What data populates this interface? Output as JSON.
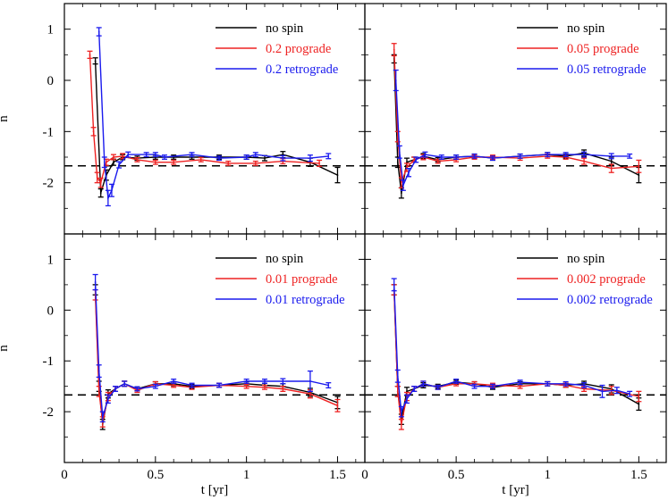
{
  "figure": {
    "ylabel": "n",
    "xlabel": "t [yr]"
  },
  "colors": {
    "no_spin": "#000000",
    "prograde": "#ee2222",
    "retrograde": "#1a1aee",
    "reference": "#000000"
  },
  "chart_data": [
    {
      "type": "line",
      "panel": "top-left",
      "xlim": [
        0,
        1.65
      ],
      "ylim": [
        -3,
        1.5
      ],
      "xticks": [
        0,
        0.5,
        1,
        1.5
      ],
      "xtick_labels": [
        "0",
        "0.5",
        "1",
        "1.5"
      ],
      "yticks": [
        1,
        0,
        -1,
        -2
      ],
      "ytick_labels": [
        "1",
        "0",
        "-1",
        "-2"
      ],
      "xlabel": "t [yr]",
      "ylabel": "n",
      "reference_line": -1.67,
      "legend_position": "top-right",
      "series": [
        {
          "name": "no spin",
          "color_key": "no_spin",
          "x": [
            0.17,
            0.2,
            0.23,
            0.27,
            0.32,
            0.4,
            0.5,
            0.6,
            0.7,
            0.85,
            1.0,
            1.1,
            1.2,
            1.35,
            1.5
          ],
          "y": [
            0.38,
            -2.2,
            -1.85,
            -1.6,
            -1.5,
            -1.52,
            -1.5,
            -1.5,
            -1.5,
            -1.5,
            -1.5,
            -1.52,
            -1.45,
            -1.6,
            -1.85
          ],
          "err": [
            0.06,
            0.08,
            0.1,
            0.06,
            0.05,
            0.04,
            0.04,
            0.04,
            0.04,
            0.04,
            0.04,
            0.05,
            0.06,
            0.08,
            0.15
          ]
        },
        {
          "name": "0.2 prograde",
          "color_key": "prograde",
          "x": [
            0.14,
            0.16,
            0.18,
            0.2,
            0.23,
            0.27,
            0.32,
            0.4,
            0.5,
            0.6,
            0.75,
            0.9,
            1.05,
            1.2,
            1.4
          ],
          "y": [
            0.5,
            -1.0,
            -1.9,
            -2.0,
            -1.6,
            -1.5,
            -1.48,
            -1.55,
            -1.6,
            -1.6,
            -1.55,
            -1.62,
            -1.62,
            -1.58,
            -1.62
          ],
          "err": [
            0.07,
            0.08,
            0.1,
            0.09,
            0.06,
            0.05,
            0.05,
            0.04,
            0.04,
            0.04,
            0.04,
            0.04,
            0.04,
            0.05,
            0.06
          ]
        },
        {
          "name": "0.2 retrograde",
          "color_key": "retrograde",
          "x": [
            0.19,
            0.22,
            0.24,
            0.26,
            0.3,
            0.35,
            0.45,
            0.5,
            0.55,
            0.7,
            0.85,
            1.0,
            1.05,
            1.2,
            1.35,
            1.45
          ],
          "y": [
            0.95,
            -1.6,
            -2.3,
            -2.15,
            -1.65,
            -1.45,
            -1.45,
            -1.45,
            -1.5,
            -1.45,
            -1.52,
            -1.5,
            -1.45,
            -1.52,
            -1.52,
            -1.48
          ],
          "err": [
            0.08,
            0.1,
            0.15,
            0.12,
            0.06,
            0.05,
            0.04,
            0.04,
            0.04,
            0.04,
            0.04,
            0.04,
            0.04,
            0.05,
            0.06,
            0.05
          ]
        }
      ],
      "legend": [
        "no spin",
        "0.2 prograde",
        "0.2 retrograde"
      ]
    },
    {
      "type": "line",
      "panel": "top-right",
      "xlim": [
        0,
        1.65
      ],
      "ylim": [
        -3,
        1.5
      ],
      "xticks": [
        0,
        0.5,
        1,
        1.5
      ],
      "xtick_labels": [
        "0",
        "0.5",
        "1",
        "1.5"
      ],
      "yticks": [
        1,
        0,
        -1,
        -2
      ],
      "ytick_labels": [
        "1",
        "0",
        "-1",
        "-2"
      ],
      "xlabel": "t [yr]",
      "ylabel": "",
      "reference_line": -1.67,
      "legend_position": "top-right",
      "series": [
        {
          "name": "no spin",
          "color_key": "no_spin",
          "x": [
            0.16,
            0.18,
            0.2,
            0.23,
            0.27,
            0.32,
            0.4,
            0.5,
            0.6,
            0.7,
            0.85,
            1.0,
            1.1,
            1.2,
            1.35,
            1.5
          ],
          "y": [
            0.42,
            -1.6,
            -2.2,
            -1.6,
            -1.55,
            -1.48,
            -1.55,
            -1.5,
            -1.48,
            -1.52,
            -1.48,
            -1.45,
            -1.48,
            -1.42,
            -1.58,
            -1.85
          ],
          "err": [
            0.08,
            0.1,
            0.1,
            0.08,
            0.05,
            0.05,
            0.04,
            0.04,
            0.04,
            0.04,
            0.04,
            0.04,
            0.04,
            0.06,
            0.08,
            0.15
          ]
        },
        {
          "name": "0.05 prograde",
          "color_key": "prograde",
          "x": [
            0.16,
            0.18,
            0.2,
            0.23,
            0.27,
            0.32,
            0.4,
            0.5,
            0.6,
            0.7,
            0.85,
            1.0,
            1.1,
            1.2,
            1.35,
            1.5
          ],
          "y": [
            0.6,
            -1.1,
            -2.0,
            -1.7,
            -1.55,
            -1.5,
            -1.58,
            -1.55,
            -1.5,
            -1.5,
            -1.52,
            -1.48,
            -1.5,
            -1.58,
            -1.72,
            -1.68
          ],
          "err": [
            0.12,
            0.1,
            0.1,
            0.08,
            0.05,
            0.05,
            0.04,
            0.04,
            0.04,
            0.04,
            0.04,
            0.04,
            0.04,
            0.06,
            0.08,
            0.12
          ]
        },
        {
          "name": "0.05 retrograde",
          "color_key": "retrograde",
          "x": [
            0.17,
            0.19,
            0.21,
            0.24,
            0.28,
            0.33,
            0.42,
            0.5,
            0.6,
            0.7,
            0.85,
            1.0,
            1.1,
            1.2,
            1.35,
            1.45
          ],
          "y": [
            0.0,
            -1.4,
            -2.05,
            -1.8,
            -1.55,
            -1.45,
            -1.5,
            -1.5,
            -1.48,
            -1.52,
            -1.48,
            -1.45,
            -1.45,
            -1.45,
            -1.48,
            -1.48
          ],
          "err": [
            0.2,
            0.12,
            0.1,
            0.08,
            0.05,
            0.05,
            0.04,
            0.04,
            0.04,
            0.04,
            0.04,
            0.04,
            0.04,
            0.05,
            0.05,
            0.04
          ]
        }
      ],
      "legend": [
        "no spin",
        "0.05 prograde",
        "0.05 retrograde"
      ]
    },
    {
      "type": "line",
      "panel": "bottom-left",
      "xlim": [
        0,
        1.65
      ],
      "ylim": [
        -3,
        1.5
      ],
      "xticks": [
        0,
        0.5,
        1,
        1.5
      ],
      "xtick_labels": [
        "0",
        "0.5",
        "1",
        "1.5"
      ],
      "yticks": [
        1,
        0,
        -1,
        -2
      ],
      "ytick_labels": [
        "1",
        "0",
        "-1",
        "-2"
      ],
      "xlabel": "t [yr]",
      "ylabel": "n",
      "reference_line": -1.67,
      "legend_position": "top-right",
      "series": [
        {
          "name": "no spin",
          "color_key": "no_spin",
          "x": [
            0.17,
            0.19,
            0.21,
            0.24,
            0.28,
            0.33,
            0.4,
            0.5,
            0.6,
            0.7,
            0.85,
            1.0,
            1.1,
            1.2,
            1.35,
            1.5
          ],
          "y": [
            0.4,
            -1.5,
            -2.25,
            -1.65,
            -1.55,
            -1.45,
            -1.55,
            -1.45,
            -1.45,
            -1.5,
            -1.48,
            -1.45,
            -1.48,
            -1.5,
            -1.62,
            -1.82
          ],
          "err": [
            0.1,
            0.1,
            0.1,
            0.08,
            0.05,
            0.05,
            0.04,
            0.04,
            0.04,
            0.04,
            0.04,
            0.04,
            0.04,
            0.05,
            0.08,
            0.12
          ]
        },
        {
          "name": "0.01 prograde",
          "color_key": "prograde",
          "x": [
            0.17,
            0.19,
            0.21,
            0.24,
            0.28,
            0.33,
            0.4,
            0.5,
            0.6,
            0.7,
            0.85,
            1.0,
            1.1,
            1.2,
            1.35,
            1.5
          ],
          "y": [
            0.3,
            -1.6,
            -2.2,
            -1.7,
            -1.55,
            -1.45,
            -1.58,
            -1.45,
            -1.48,
            -1.52,
            -1.48,
            -1.5,
            -1.52,
            -1.55,
            -1.65,
            -1.88
          ],
          "err": [
            0.1,
            0.1,
            0.1,
            0.08,
            0.05,
            0.05,
            0.04,
            0.04,
            0.04,
            0.04,
            0.04,
            0.04,
            0.04,
            0.05,
            0.08,
            0.12
          ]
        },
        {
          "name": "0.01 retrograde",
          "color_key": "retrograde",
          "x": [
            0.17,
            0.19,
            0.21,
            0.24,
            0.28,
            0.33,
            0.4,
            0.5,
            0.6,
            0.7,
            0.85,
            1.0,
            1.1,
            1.2,
            1.35,
            1.45
          ],
          "y": [
            0.55,
            -1.2,
            -2.1,
            -1.75,
            -1.55,
            -1.45,
            -1.55,
            -1.5,
            -1.4,
            -1.48,
            -1.48,
            -1.4,
            -1.4,
            -1.4,
            -1.4,
            -1.48
          ],
          "err": [
            0.15,
            0.12,
            0.1,
            0.08,
            0.05,
            0.05,
            0.04,
            0.04,
            0.04,
            0.04,
            0.04,
            0.04,
            0.04,
            0.05,
            0.2,
            0.05
          ]
        }
      ],
      "legend": [
        "no spin",
        "0.01 prograde",
        "0.01 retrograde"
      ]
    },
    {
      "type": "line",
      "panel": "bottom-right",
      "xlim": [
        0,
        1.65
      ],
      "ylim": [
        -3,
        1.5
      ],
      "xticks": [
        0,
        0.5,
        1,
        1.5
      ],
      "xtick_labels": [
        "0",
        "0.5",
        "1",
        "1.5"
      ],
      "yticks": [
        1,
        0,
        -1,
        -2
      ],
      "ytick_labels": [
        "1",
        "0",
        "-1",
        "-2"
      ],
      "xlabel": "t [yr]",
      "ylabel": "",
      "reference_line": -1.67,
      "legend_position": "top-right",
      "series": [
        {
          "name": "no spin",
          "color_key": "no_spin",
          "x": [
            0.16,
            0.18,
            0.2,
            0.23,
            0.27,
            0.32,
            0.4,
            0.5,
            0.6,
            0.7,
            0.85,
            1.0,
            1.1,
            1.2,
            1.35,
            1.5
          ],
          "y": [
            0.4,
            -1.6,
            -2.15,
            -1.6,
            -1.55,
            -1.48,
            -1.5,
            -1.42,
            -1.45,
            -1.52,
            -1.45,
            -1.45,
            -1.48,
            -1.45,
            -1.55,
            -1.85
          ],
          "err": [
            0.1,
            0.1,
            0.1,
            0.08,
            0.05,
            0.05,
            0.04,
            0.04,
            0.04,
            0.04,
            0.04,
            0.04,
            0.04,
            0.05,
            0.08,
            0.12
          ]
        },
        {
          "name": "0.002 prograde",
          "color_key": "prograde",
          "x": [
            0.16,
            0.18,
            0.2,
            0.23,
            0.27,
            0.32,
            0.4,
            0.5,
            0.6,
            0.7,
            0.85,
            1.0,
            1.1,
            1.2,
            1.35,
            1.5
          ],
          "y": [
            0.4,
            -1.6,
            -2.25,
            -1.7,
            -1.55,
            -1.45,
            -1.52,
            -1.45,
            -1.45,
            -1.48,
            -1.5,
            -1.45,
            -1.48,
            -1.55,
            -1.58,
            -1.7
          ],
          "err": [
            0.1,
            0.1,
            0.1,
            0.08,
            0.05,
            0.05,
            0.04,
            0.04,
            0.04,
            0.04,
            0.04,
            0.04,
            0.04,
            0.05,
            0.08,
            0.1
          ]
        },
        {
          "name": "0.002 retrograde",
          "color_key": "retrograde",
          "x": [
            0.16,
            0.18,
            0.2,
            0.23,
            0.27,
            0.32,
            0.4,
            0.5,
            0.6,
            0.7,
            0.85,
            1.0,
            1.1,
            1.2,
            1.3,
            1.38,
            1.45
          ],
          "y": [
            0.5,
            -1.3,
            -2.0,
            -1.75,
            -1.55,
            -1.45,
            -1.52,
            -1.4,
            -1.5,
            -1.5,
            -1.42,
            -1.45,
            -1.45,
            -1.48,
            -1.6,
            -1.58,
            -1.65
          ],
          "err": [
            0.12,
            0.12,
            0.1,
            0.08,
            0.05,
            0.05,
            0.04,
            0.04,
            0.04,
            0.04,
            0.04,
            0.04,
            0.04,
            0.05,
            0.12,
            0.06,
            0.05
          ]
        }
      ],
      "legend": [
        "no spin",
        "0.002 prograde",
        "0.002 retrograde"
      ]
    }
  ]
}
